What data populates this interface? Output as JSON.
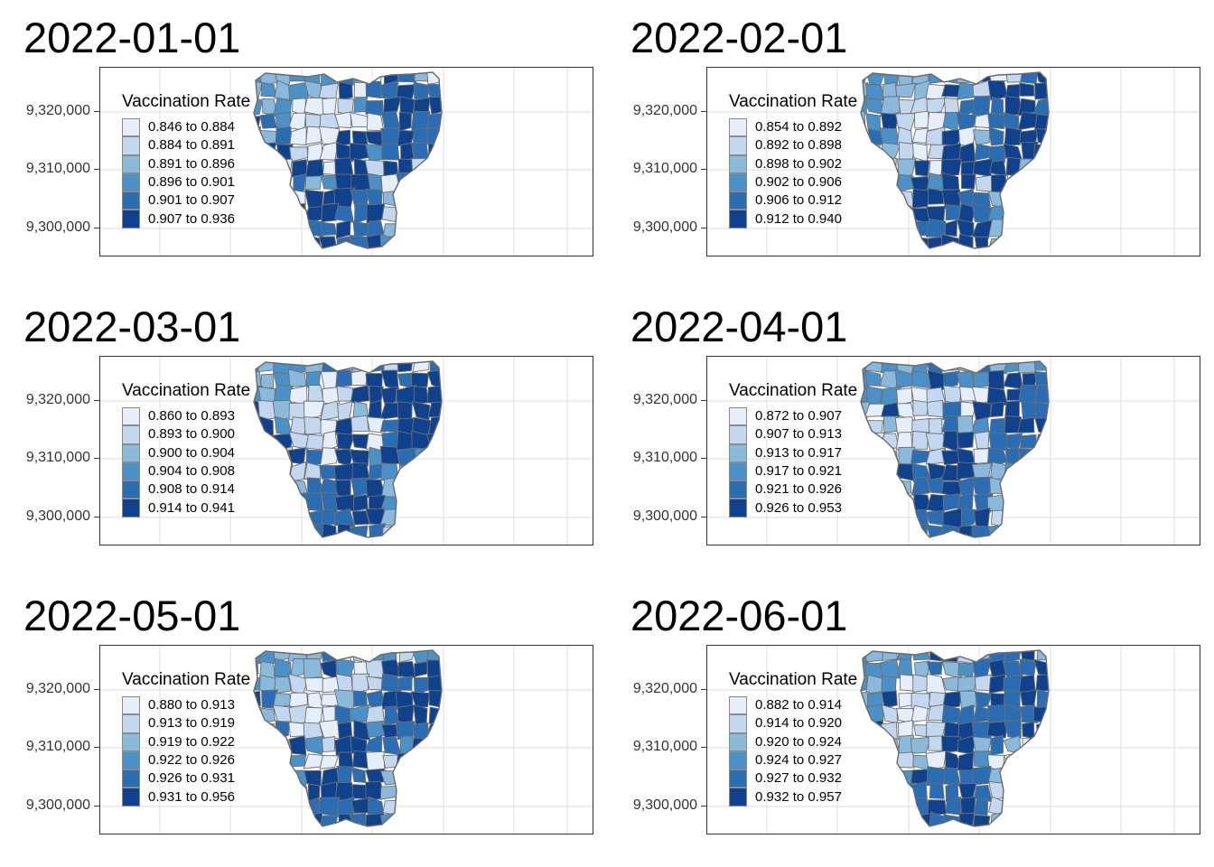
{
  "legend_title": "Vaccination Rate",
  "y_axis_ticks": [
    "9,320,000",
    "9,310,000",
    "9,300,000"
  ],
  "palette": [
    "#e6eff9",
    "#c3d7ee",
    "#8bb9dc",
    "#4b91c8",
    "#2a6db3",
    "#10418d"
  ],
  "border_color": "#6e6e6e",
  "panels": [
    {
      "title": "2022-01-01",
      "legend": [
        "0.846 to 0.884",
        "0.884 to 0.891",
        "0.891 to 0.896",
        "0.896 to 0.901",
        "0.901 to 0.907",
        "0.907 to 0.936"
      ]
    },
    {
      "title": "2022-02-01",
      "legend": [
        "0.854 to 0.892",
        "0.892 to 0.898",
        "0.898 to 0.902",
        "0.902 to 0.906",
        "0.906 to 0.912",
        "0.912 to 0.940"
      ]
    },
    {
      "title": "2022-03-01",
      "legend": [
        "0.860 to 0.893",
        "0.893 to 0.900",
        "0.900 to 0.904",
        "0.904 to 0.908",
        "0.908 to 0.914",
        "0.914 to 0.941"
      ]
    },
    {
      "title": "2022-04-01",
      "legend": [
        "0.872 to 0.907",
        "0.907 to 0.913",
        "0.913 to 0.917",
        "0.917 to 0.921",
        "0.921 to 0.926",
        "0.926 to 0.953"
      ]
    },
    {
      "title": "2022-05-01",
      "legend": [
        "0.880 to 0.913",
        "0.913 to 0.919",
        "0.919 to 0.922",
        "0.922 to 0.926",
        "0.926 to 0.931",
        "0.931 to 0.956"
      ]
    },
    {
      "title": "2022-06-01",
      "legend": [
        "0.882 to 0.914",
        "0.914 to 0.920",
        "0.920 to 0.924",
        "0.924 to 0.927",
        "0.927 to 0.932",
        "0.932 to 0.957"
      ]
    }
  ]
}
